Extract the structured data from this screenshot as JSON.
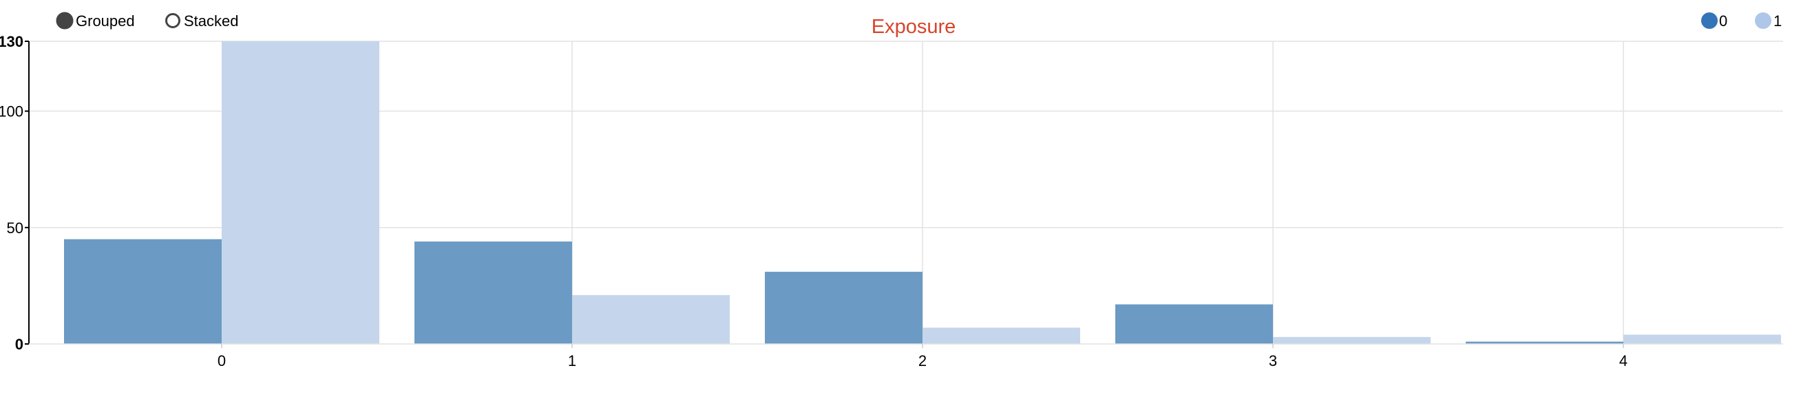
{
  "controls": {
    "grouped_label": "Grouped",
    "stacked_label": "Stacked",
    "selected": "grouped"
  },
  "legend": {
    "items": [
      {
        "label": "0",
        "color": "#3375b7",
        "bar_color": "#6b9ac4"
      },
      {
        "label": "1",
        "color": "#aec7e8",
        "bar_color": "#c5d6ec"
      }
    ]
  },
  "chart_data": {
    "type": "bar",
    "mode": "grouped",
    "title": "Exposure",
    "title_color": "#d6452c",
    "categories": [
      "0",
      "1",
      "2",
      "3",
      "4"
    ],
    "series": [
      {
        "name": "0",
        "values": [
          45,
          44,
          31,
          17,
          1
        ]
      },
      {
        "name": "1",
        "values": [
          130,
          21,
          7,
          3,
          4
        ]
      }
    ],
    "xlabel": "",
    "ylabel": "",
    "ylim": [
      0,
      130
    ],
    "yticks": [
      0,
      50,
      100,
      130
    ],
    "grid": true,
    "legend_position": "top-right"
  }
}
